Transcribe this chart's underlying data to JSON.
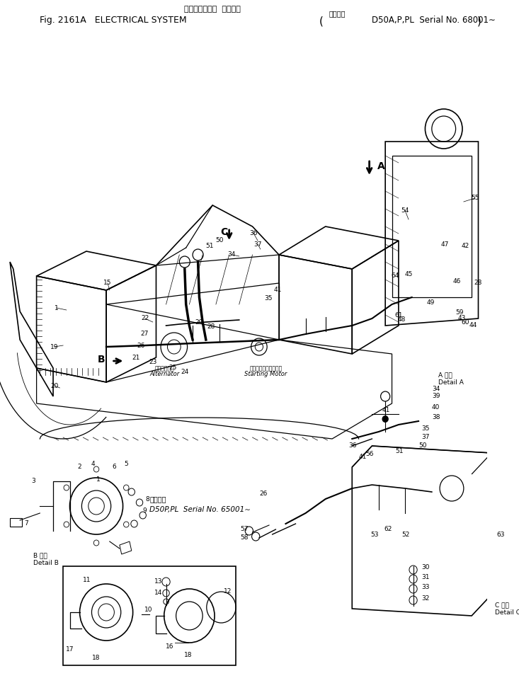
{
  "figsize": [
    7.33,
    9.89
  ],
  "dpi": 100,
  "bg_color": "#ffffff",
  "title_jp": "エレクトリカル  システム",
  "title_en": "ELECTRICAL SYSTEM",
  "fig_num": "Fig. 2161A",
  "serial_jp": "適用号機",
  "serial_en": "D50A,P,PL  Serial No. 68001∼",
  "detail_a": "A 詳細\nDetail A",
  "detail_b": "B 詳細\nDetail B",
  "detail_c": "C 詳細\nDetail C",
  "alternator_jp": "オルタネータ",
  "alternator_en": "Alternator",
  "starting_jp": "スターティングモータ",
  "starting_en": "Starting Motor",
  "serial_d50p": "D50P,PL  Serial No. 65001∼"
}
